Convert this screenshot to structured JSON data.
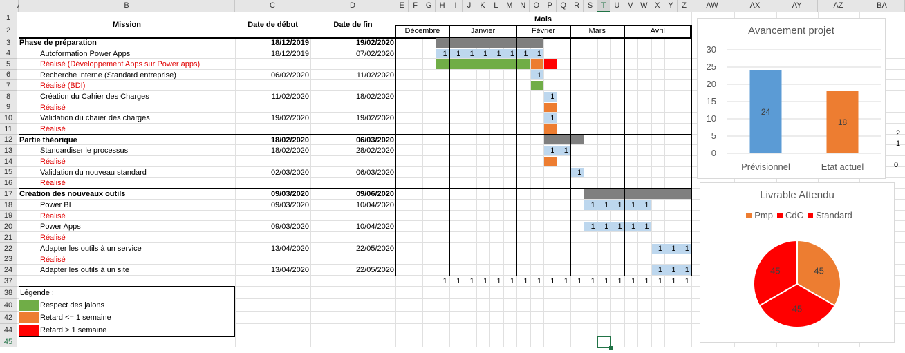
{
  "sheet": {
    "columns_left": [
      "A",
      "B",
      "C",
      "D"
    ],
    "columns_gantt": [
      "E",
      "F",
      "G",
      "H",
      "I",
      "J",
      "K",
      "L",
      "M",
      "N",
      "O",
      "P",
      "Q",
      "R",
      "S",
      "T",
      "U",
      "V",
      "W",
      "X",
      "Y",
      "Z"
    ],
    "columns_right": [
      "AW",
      "AX",
      "AY",
      "AZ",
      "BA"
    ],
    "selected_column": "T",
    "selected_row": "45",
    "rows": [
      "1",
      "2",
      "3",
      "4",
      "5",
      "6",
      "7",
      "8",
      "9",
      "10",
      "11",
      "12",
      "13",
      "14",
      "15",
      "16",
      "17",
      "18",
      "19",
      "20",
      "21",
      "22",
      "23",
      "24",
      "37",
      "38",
      "40",
      "42",
      "44",
      "45"
    ]
  },
  "headers": {
    "mission": "Mission",
    "date_debut": "Date de début",
    "date_fin": "Date de fin",
    "mois": "Mois",
    "months": [
      "Décembre",
      "Janvier",
      "Février",
      "Mars",
      "Avril"
    ]
  },
  "tasks": [
    {
      "name": "Phase de préparation",
      "start": "18/12/2019",
      "end": "19/02/2020",
      "type": "phase",
      "bar": [
        3,
        11,
        "#7f7f7f"
      ]
    },
    {
      "name": "Autoformation Power Apps",
      "start": "18/12/2019",
      "end": "07/02/2020",
      "type": "task",
      "ones": [
        3,
        4,
        5,
        6,
        7,
        8,
        9,
        10
      ],
      "onesEnd": [
        3,
        10
      ]
    },
    {
      "name": "Réalisé (Développement Apps sur Power apps)",
      "start": "",
      "end": "",
      "type": "real",
      "segs": [
        [
          3,
          10,
          "#70ad47"
        ],
        [
          10,
          11,
          "#ed7d31"
        ],
        [
          11,
          12,
          "#ff0000"
        ]
      ]
    },
    {
      "name": "Recherche interne (Standard entreprise)",
      "start": "06/02/2020",
      "end": "11/02/2020",
      "type": "task",
      "ones": [
        10
      ],
      "onesEnd": [
        10,
        10
      ]
    },
    {
      "name": "Réalisé (BDI)",
      "start": "",
      "end": "",
      "type": "real",
      "segs": [
        [
          10,
          11,
          "#70ad47"
        ]
      ]
    },
    {
      "name": "Création du Cahier des Charges",
      "start": "11/02/2020",
      "end": "18/02/2020",
      "type": "task",
      "ones": [
        11
      ],
      "onesEnd": [
        11,
        11
      ]
    },
    {
      "name": "Réalisé",
      "start": "",
      "end": "",
      "type": "real",
      "segs": [
        [
          11,
          12,
          "#ed7d31"
        ]
      ]
    },
    {
      "name": "Validation du chaier des charges",
      "start": "19/02/2020",
      "end": "19/02/2020",
      "type": "task",
      "ones": [
        11
      ],
      "onesEnd": [
        11,
        11
      ]
    },
    {
      "name": "Réalisé",
      "start": "",
      "end": "",
      "type": "real",
      "segs": [
        [
          11,
          12,
          "#ed7d31"
        ]
      ]
    },
    {
      "name": "Partie théorique",
      "start": "18/02/2020",
      "end": "06/03/2020",
      "type": "phase",
      "bar": [
        11,
        14,
        "#7f7f7f"
      ]
    },
    {
      "name": "Standardiser le processus",
      "start": "18/02/2020",
      "end": "28/02/2020",
      "type": "task",
      "ones": [
        11,
        12
      ],
      "onesEnd": [
        11,
        12
      ]
    },
    {
      "name": "Réalisé",
      "start": "",
      "end": "",
      "type": "real",
      "segs": [
        [
          11,
          12,
          "#ed7d31"
        ]
      ]
    },
    {
      "name": "Validation du nouveau standard",
      "start": "02/03/2020",
      "end": "06/03/2020",
      "type": "task",
      "ones": [
        13
      ],
      "onesEnd": [
        13,
        13
      ]
    },
    {
      "name": "Réalisé",
      "start": "",
      "end": "",
      "type": "real",
      "segs": []
    },
    {
      "name": "Création des nouveaux outils",
      "start": "09/03/2020",
      "end": "09/06/2020",
      "type": "phase",
      "bar": [
        14,
        22,
        "#7f7f7f"
      ]
    },
    {
      "name": "Power BI",
      "start": "09/03/2020",
      "end": "10/04/2020",
      "type": "task",
      "ones": [
        14,
        15,
        16,
        17,
        18
      ],
      "onesEnd": [
        14,
        18
      ]
    },
    {
      "name": "Réalisé",
      "start": "",
      "end": "",
      "type": "real",
      "segs": []
    },
    {
      "name": "Power Apps",
      "start": "09/03/2020",
      "end": "10/04/2020",
      "type": "task",
      "ones": [
        14,
        15,
        16,
        17,
        18
      ],
      "onesEnd": [
        14,
        18
      ]
    },
    {
      "name": "Réalisé",
      "start": "",
      "end": "",
      "type": "real",
      "segs": []
    },
    {
      "name": "Adapter les outils à un service",
      "start": "13/04/2020",
      "end": "22/05/2020",
      "type": "task",
      "ones": [
        19,
        20,
        21
      ],
      "onesEnd": [
        19,
        21
      ]
    },
    {
      "name": "Réalisé",
      "start": "",
      "end": "",
      "type": "real",
      "segs": []
    },
    {
      "name": "Adapter les outils à un site",
      "start": "13/04/2020",
      "end": "22/05/2020",
      "type": "task",
      "ones": [
        19,
        20,
        21
      ],
      "onesEnd": [
        19,
        21
      ]
    }
  ],
  "row37_ones": [
    3,
    4,
    5,
    6,
    7,
    8,
    9,
    10,
    11,
    12,
    13,
    14,
    15,
    16,
    17,
    18,
    19,
    20,
    21
  ],
  "one_value": "1",
  "legend": {
    "title": "Légende :",
    "items": [
      {
        "color": "#70ad47",
        "label": "Respect des jalons"
      },
      {
        "color": "#ed7d31",
        "label": "Retard <= 1 semaine"
      },
      {
        "color": "#ff0000",
        "label": "Retard > 1 semaine"
      }
    ]
  },
  "stray_labels": [
    "2",
    "1",
    "0"
  ],
  "chart_data": [
    {
      "type": "bar",
      "title": "Avancement projet",
      "categories": [
        "Prévisionnel",
        "Etat actuel"
      ],
      "values": [
        24,
        18
      ],
      "colors": [
        "#5b9bd5",
        "#ed7d31"
      ],
      "ylim": [
        0,
        30
      ],
      "yticks": [
        0,
        5,
        10,
        15,
        20,
        25,
        30
      ],
      "grid": true
    },
    {
      "type": "pie",
      "title": "Livrable Attendu",
      "labels": [
        "Pmp",
        "CdC",
        "Standard"
      ],
      "values": [
        45,
        45,
        45
      ],
      "colors": [
        "#ed7d31",
        "#ff0000",
        "#ff0000"
      ],
      "legend_position": "top"
    }
  ]
}
